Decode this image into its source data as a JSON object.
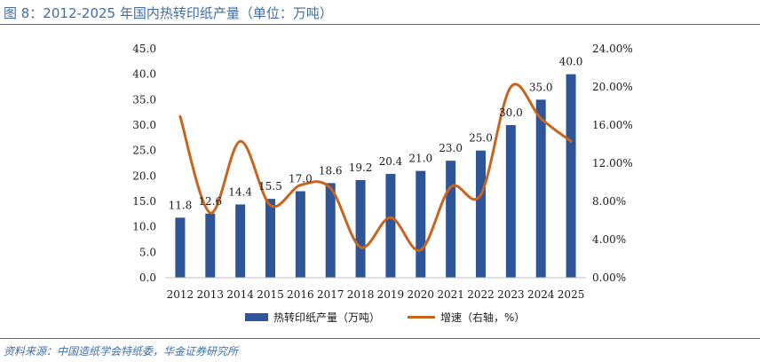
{
  "figure": {
    "title": "图 8：2012-2025 年国内热转印纸产量（单位：万吨）",
    "source": "资料来源：中国造纸学会特纸委，华金证券研究所"
  },
  "colors": {
    "bar": "#2e5597",
    "line": "#c8641e",
    "accent": "#3f6ea4"
  },
  "chart_data": {
    "type": "bar",
    "categories": [
      "2012",
      "2013",
      "2014",
      "2015",
      "2016",
      "2017",
      "2018",
      "2019",
      "2020",
      "2021",
      "2022",
      "2023",
      "2024",
      "2025"
    ],
    "series": [
      {
        "name": "热转印纸产量（万吨）",
        "type": "bar",
        "axis": "left",
        "values": [
          11.8,
          12.6,
          14.4,
          15.5,
          17.0,
          18.6,
          19.2,
          20.4,
          21.0,
          23.0,
          25.0,
          30.0,
          35.0,
          40.0
        ],
        "labels": [
          "11.8",
          "12.6",
          "14.4",
          "15.5",
          "17.0",
          "18.6",
          "19.2",
          "20.4",
          "21.0",
          "23.0",
          "25.0",
          "30.0",
          "35.0",
          "40.0"
        ]
      },
      {
        "name": "增速（右轴，%）",
        "type": "line",
        "axis": "right",
        "smooth": true,
        "values": [
          16.9,
          6.8,
          14.3,
          7.6,
          9.7,
          9.4,
          3.2,
          6.3,
          2.9,
          9.5,
          8.7,
          20.0,
          16.7,
          14.3
        ]
      }
    ],
    "y_left": {
      "min": 0,
      "max": 45,
      "ticks": [
        "0.0",
        "5.0",
        "10.0",
        "15.0",
        "20.0",
        "25.0",
        "30.0",
        "35.0",
        "40.0",
        "45.0"
      ]
    },
    "y_right": {
      "min": 0,
      "max": 24,
      "ticks": [
        "0.00%",
        "4.00%",
        "8.00%",
        "12.00%",
        "16.00%",
        "20.00%",
        "24.00%"
      ]
    },
    "grid": false,
    "legend_position": "bottom"
  }
}
